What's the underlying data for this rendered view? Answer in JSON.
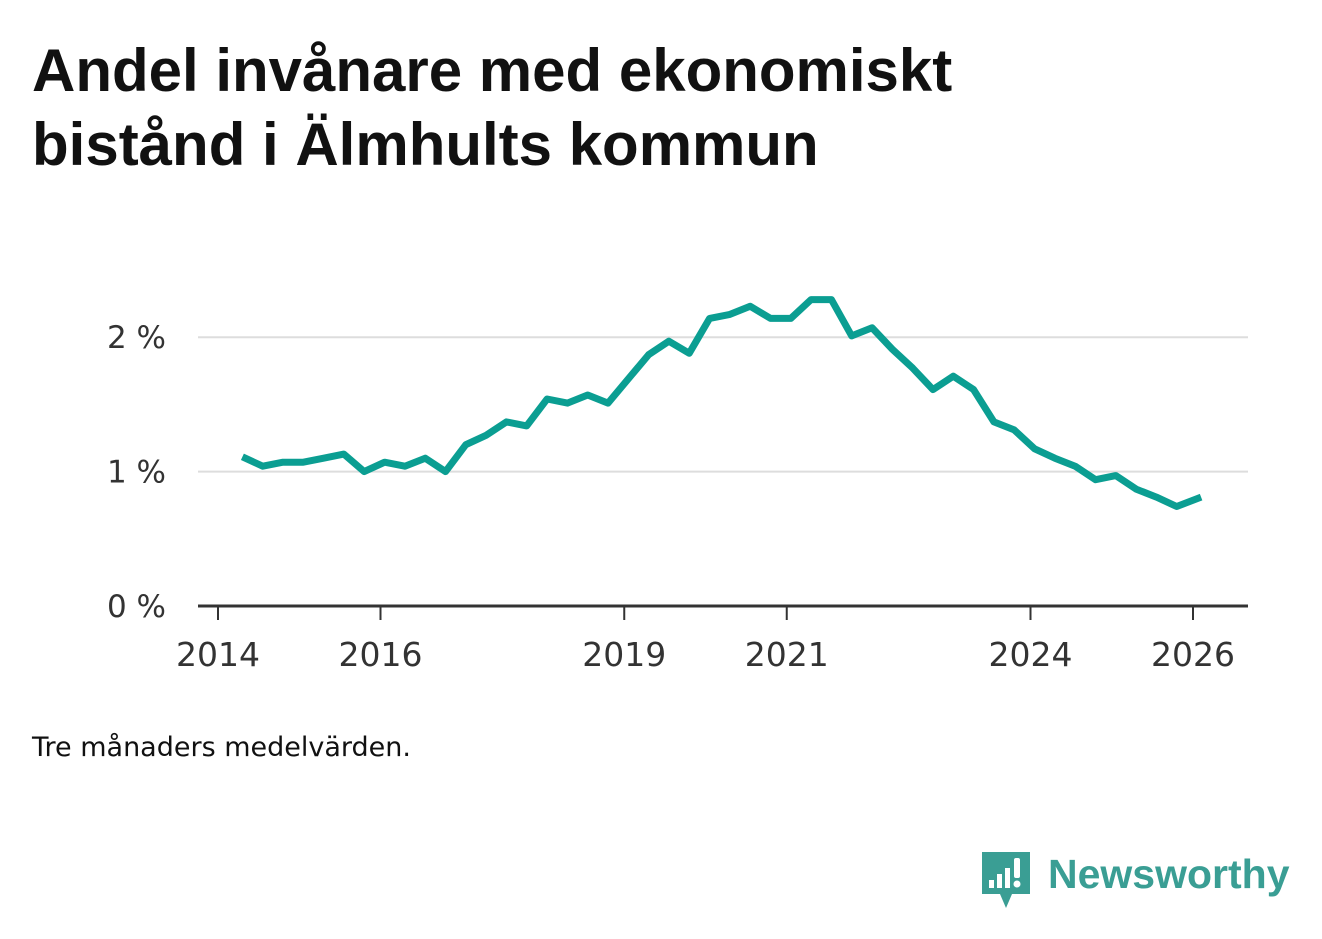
{
  "title": {
    "line1": "Andel invånare med ekonomiskt",
    "line2": "bistånd i Älmhults kommun"
  },
  "footnote": "Tre månaders medelvärden.",
  "brand": {
    "name": "Newsworthy",
    "color": "#3a9e94"
  },
  "colors": {
    "line": "#0b9e92",
    "grid": "#dddddd",
    "axis": "#333333",
    "tick_text": "#333333"
  },
  "chart_data": {
    "type": "line",
    "title": "Andel invånare med ekonomiskt bistånd i Älmhults kommun",
    "xlabel": "",
    "ylabel": "",
    "y_unit": "%",
    "ylim": [
      0,
      2.5
    ],
    "xlim": [
      2014.0,
      2026.7
    ],
    "y_ticks": [
      0,
      1,
      2
    ],
    "y_tick_labels": [
      "0 %",
      "1 %",
      "2 %"
    ],
    "x_ticks": [
      2014,
      2016,
      2019,
      2021,
      2024,
      2026
    ],
    "x_tick_labels": [
      "2014",
      "2016",
      "2019",
      "2021",
      "2024",
      "2026"
    ],
    "grid": true,
    "series": [
      {
        "name": "Andel invånare med ekonomiskt bistånd",
        "x": [
          2014.3,
          2014.55,
          2014.8,
          2015.05,
          2015.3,
          2015.55,
          2015.8,
          2016.05,
          2016.3,
          2016.55,
          2016.8,
          2017.05,
          2017.3,
          2017.55,
          2017.8,
          2018.05,
          2018.3,
          2018.55,
          2018.8,
          2019.05,
          2019.3,
          2019.55,
          2019.8,
          2020.05,
          2020.3,
          2020.55,
          2020.8,
          2021.05,
          2021.3,
          2021.55,
          2021.8,
          2022.05,
          2022.3,
          2022.55,
          2022.8,
          2023.05,
          2023.3,
          2023.55,
          2023.8,
          2024.05,
          2024.3,
          2024.55,
          2024.8,
          2025.05,
          2025.3,
          2025.55,
          2025.8,
          2026.1
        ],
        "values": [
          1.11,
          1.04,
          1.07,
          1.07,
          1.1,
          1.13,
          1.0,
          1.07,
          1.04,
          1.1,
          1.0,
          1.2,
          1.27,
          1.37,
          1.34,
          1.54,
          1.51,
          1.57,
          1.51,
          1.69,
          1.87,
          1.97,
          1.88,
          2.14,
          2.17,
          2.23,
          2.14,
          2.14,
          2.28,
          2.28,
          2.01,
          2.07,
          1.91,
          1.77,
          1.61,
          1.71,
          1.61,
          1.37,
          1.31,
          1.17,
          1.1,
          1.04,
          0.94,
          0.97,
          0.87,
          0.81,
          0.74,
          0.81
        ]
      }
    ]
  }
}
